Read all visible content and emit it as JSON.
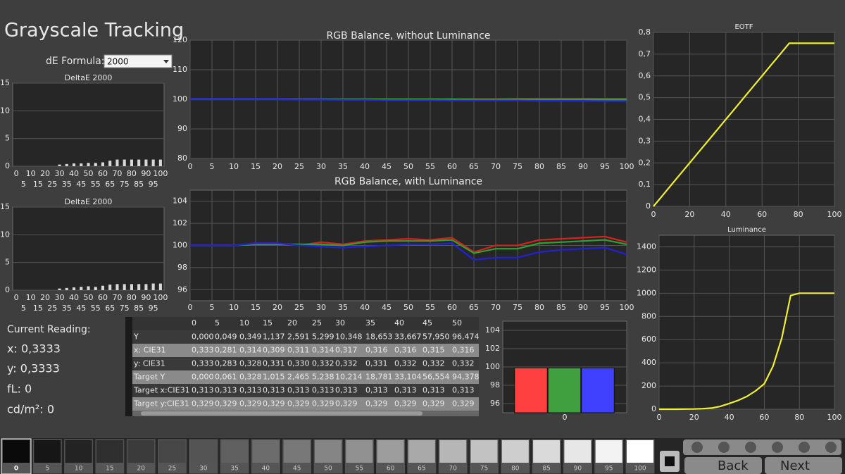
{
  "header": {
    "title": "Grayscale Tracking",
    "formula_label": "dE Formula:",
    "formula_value": "2000"
  },
  "chart_data": [
    {
      "type": "bar",
      "title": "DeltaE 2000",
      "categories": [
        "0",
        "5",
        "10",
        "15",
        "20",
        "25",
        "30",
        "35",
        "40",
        "45",
        "50",
        "55",
        "60",
        "65",
        "70",
        "75",
        "80",
        "85",
        "90",
        "95",
        "100"
      ],
      "values": [
        0,
        0,
        0,
        0,
        0,
        0,
        0.3,
        0.4,
        0.5,
        0.5,
        0.6,
        0.6,
        0.7,
        1.0,
        1.2,
        1.2,
        1.2,
        1.2,
        1.2,
        1.2,
        1.2
      ],
      "color": "#d8d8d8",
      "ylim": [
        0,
        15
      ],
      "yticks": [
        0,
        5,
        10,
        15
      ],
      "grid": true
    },
    {
      "type": "bar",
      "title": "DeltaE 2000",
      "categories": [
        "0",
        "5",
        "10",
        "15",
        "20",
        "25",
        "30",
        "35",
        "40",
        "45",
        "50",
        "55",
        "60",
        "65",
        "70",
        "75",
        "80",
        "85",
        "90",
        "95",
        "100"
      ],
      "values": [
        0,
        0,
        0,
        0,
        0,
        0,
        0.3,
        0.4,
        0.5,
        0.6,
        0.7,
        0.6,
        0.8,
        1.0,
        1.1,
        1.1,
        1.1,
        1.1,
        1.1,
        1.2,
        1.2
      ],
      "color": "#d8d8d8",
      "ylim": [
        0,
        15
      ],
      "yticks": [
        0,
        5,
        10,
        15
      ],
      "grid": true
    },
    {
      "type": "line",
      "title": "RGB Balance, without Luminance",
      "x": [
        0,
        5,
        10,
        15,
        20,
        25,
        30,
        35,
        40,
        45,
        50,
        55,
        60,
        65,
        70,
        75,
        80,
        85,
        90,
        95,
        100
      ],
      "series": [
        {
          "color": "#c83020",
          "values": [
            100.1,
            100.1,
            100.1,
            100.1,
            100.1,
            100.1,
            100.1,
            100.1,
            100.1,
            100.1,
            100.1,
            100.1,
            100.1,
            100.1,
            100.1,
            100.2,
            100.2,
            100.2,
            100.2,
            100.2,
            100.2
          ]
        },
        {
          "color": "#30a030",
          "values": [
            100,
            100,
            100,
            100,
            100,
            100,
            100,
            100,
            100,
            100,
            100,
            100,
            100,
            99.9,
            99.9,
            99.9,
            99.9,
            99.9,
            99.9,
            99.9,
            99.9
          ]
        },
        {
          "color": "#2828e0",
          "values": [
            100,
            100,
            100,
            100,
            100,
            99.9,
            99.9,
            99.8,
            99.8,
            99.7,
            99.7,
            99.7,
            99.6,
            99.6,
            99.6,
            99.6,
            99.5,
            99.5,
            99.5,
            99.4,
            99.4
          ]
        }
      ],
      "xlim": [
        0,
        100
      ],
      "xticks": [
        0,
        5,
        10,
        15,
        20,
        25,
        30,
        35,
        40,
        45,
        50,
        55,
        60,
        65,
        70,
        75,
        80,
        85,
        90,
        95,
        100
      ],
      "ylim": [
        80,
        120
      ],
      "yticks": [
        80,
        90,
        100,
        110,
        120
      ],
      "grid": true
    },
    {
      "type": "line",
      "title": "RGB Balance, with Luminance",
      "x": [
        0,
        5,
        10,
        15,
        20,
        25,
        30,
        35,
        40,
        45,
        50,
        55,
        60,
        65,
        70,
        75,
        80,
        85,
        90,
        95,
        100
      ],
      "series": [
        {
          "color": "#d82020",
          "values": [
            100,
            100,
            100,
            100.2,
            100.2,
            100,
            100.3,
            100.1,
            100.4,
            100.5,
            100.6,
            100.5,
            100.7,
            99.4,
            100,
            100,
            100.5,
            100.6,
            100.7,
            100.8,
            100.3
          ]
        },
        {
          "color": "#30a030",
          "values": [
            100,
            100,
            100,
            100.1,
            100.1,
            100.1,
            100.1,
            100,
            100.3,
            100.4,
            100.4,
            100.4,
            100.5,
            99.3,
            99.7,
            99.7,
            100.2,
            100.3,
            100.4,
            100.5,
            100.1
          ]
        },
        {
          "color": "#2020e0",
          "values": [
            100,
            100,
            100,
            100.2,
            100.2,
            100,
            99.9,
            99.8,
            99.9,
            100,
            100.1,
            100.1,
            100.2,
            98.7,
            98.9,
            98.9,
            99.4,
            99.6,
            99.7,
            99.8,
            99.2
          ]
        }
      ],
      "xlim": [
        0,
        100
      ],
      "xticks": [
        0,
        5,
        10,
        15,
        20,
        25,
        30,
        35,
        40,
        45,
        50,
        55,
        60,
        65,
        70,
        75,
        80,
        85,
        90,
        95,
        100
      ],
      "ylim": [
        95,
        105
      ],
      "yticks": [
        96,
        98,
        100,
        102,
        104
      ],
      "grid": true
    },
    {
      "type": "line",
      "title": "EOTF",
      "x": [
        0,
        5,
        10,
        15,
        20,
        25,
        30,
        35,
        40,
        45,
        50,
        55,
        60,
        65,
        70,
        75,
        80,
        85,
        90,
        95,
        100
      ],
      "series": [
        {
          "color": "#f0f030",
          "values": [
            0,
            0.05,
            0.1,
            0.15,
            0.2,
            0.25,
            0.3,
            0.35,
            0.4,
            0.45,
            0.5,
            0.55,
            0.6,
            0.65,
            0.7,
            0.75,
            0.75,
            0.75,
            0.75,
            0.75,
            0.75
          ]
        }
      ],
      "xlim": [
        0,
        100
      ],
      "xticks": [
        0,
        20,
        40,
        60,
        80,
        100
      ],
      "ylim": [
        0,
        0.8
      ],
      "yticks": [
        0,
        {
          "value": 0.1,
          "label": "0,1"
        },
        {
          "value": 0.2,
          "label": "0,2"
        },
        {
          "value": 0.3,
          "label": "0,3"
        },
        {
          "value": 0.4,
          "label": "0,4"
        },
        {
          "value": 0.5,
          "label": "0,5"
        },
        {
          "value": 0.6,
          "label": "0,6"
        },
        {
          "value": 0.7,
          "label": "0,7"
        },
        {
          "value": 0.8,
          "label": "0,8"
        }
      ],
      "grid": true
    },
    {
      "type": "line",
      "title": "Luminance",
      "x": [
        0,
        5,
        10,
        15,
        20,
        25,
        30,
        35,
        40,
        45,
        50,
        55,
        60,
        65,
        70,
        75,
        80,
        85,
        90,
        95,
        100
      ],
      "series": [
        {
          "color": "#f0f030",
          "values": [
            0,
            0,
            0,
            1,
            2,
            5,
            10,
            25,
            49,
            75,
            110,
            158,
            219,
            371,
            615,
            980,
            1000,
            1000,
            1000,
            1000,
            1000
          ]
        }
      ],
      "xlim": [
        0,
        100
      ],
      "xticks": [
        0,
        20,
        40,
        60,
        80,
        100
      ],
      "ylim": [
        0,
        1500
      ],
      "yticks": [
        0,
        200,
        400,
        600,
        800,
        1000,
        1200,
        1400
      ],
      "grid": true
    },
    {
      "type": "bar",
      "categories": [
        "0"
      ],
      "series": [
        {
          "color": "#ff4040",
          "values": [
            99.9
          ]
        },
        {
          "color": "#40a040",
          "values": [
            99.9
          ]
        },
        {
          "color": "#4040ff",
          "values": [
            99.9
          ]
        }
      ],
      "ylim": [
        95,
        105
      ],
      "yticks": [
        96,
        98,
        100,
        102,
        104
      ],
      "grid": true
    }
  ],
  "reading": {
    "title": "Current Reading:",
    "lines": [
      "x: 0,3333",
      "y: 0,3333",
      "fL: 0",
      "cd/m²: 0"
    ]
  },
  "table": {
    "columns": [
      "0",
      "5",
      "10",
      "15",
      "20",
      "25",
      "30",
      "35",
      "40",
      "45",
      "50"
    ],
    "rows": [
      [
        "Y",
        "0,000",
        "0,049",
        "0,349",
        "1,137",
        "2,591",
        "5,299",
        "10,348",
        "18,653",
        "33,667",
        "57,950",
        "96,474"
      ],
      [
        "x: CIE31",
        "0,333",
        "0,281",
        "0,314",
        "0,309",
        "0,311",
        "0,314",
        "0,317",
        "0,316",
        "0,316",
        "0,315",
        "0,316"
      ],
      [
        "y: CIE31",
        "0,333",
        "0,283",
        "0,328",
        "0,331",
        "0,330",
        "0,332",
        "0,332",
        "0,331",
        "0,332",
        "0,332",
        "0,332"
      ],
      [
        "Target Y",
        "0,000",
        "0,061",
        "0,328",
        "1,015",
        "2,465",
        "5,238",
        "10,214",
        "18,781",
        "33,104",
        "56,554",
        "94,378"
      ],
      [
        "Target x:CIE31",
        "0,313",
        "0,313",
        "0,313",
        "0,313",
        "0,313",
        "0,313",
        "0,313",
        "0,313",
        "0,313",
        "0,313",
        "0,313"
      ],
      [
        "Target y:CIE31",
        "0,329",
        "0,329",
        "0,329",
        "0,329",
        "0,329",
        "0,329",
        "0,329",
        "0,329",
        "0,329",
        "0,329",
        "0,329"
      ]
    ]
  },
  "swatches": [
    "0",
    "5",
    "10",
    "15",
    "20",
    "25",
    "30",
    "35",
    "40",
    "45",
    "50",
    "55",
    "60",
    "65",
    "70",
    "75",
    "80",
    "85",
    "90",
    "95",
    "100"
  ],
  "buttons": [
    "Back",
    "Next"
  ]
}
